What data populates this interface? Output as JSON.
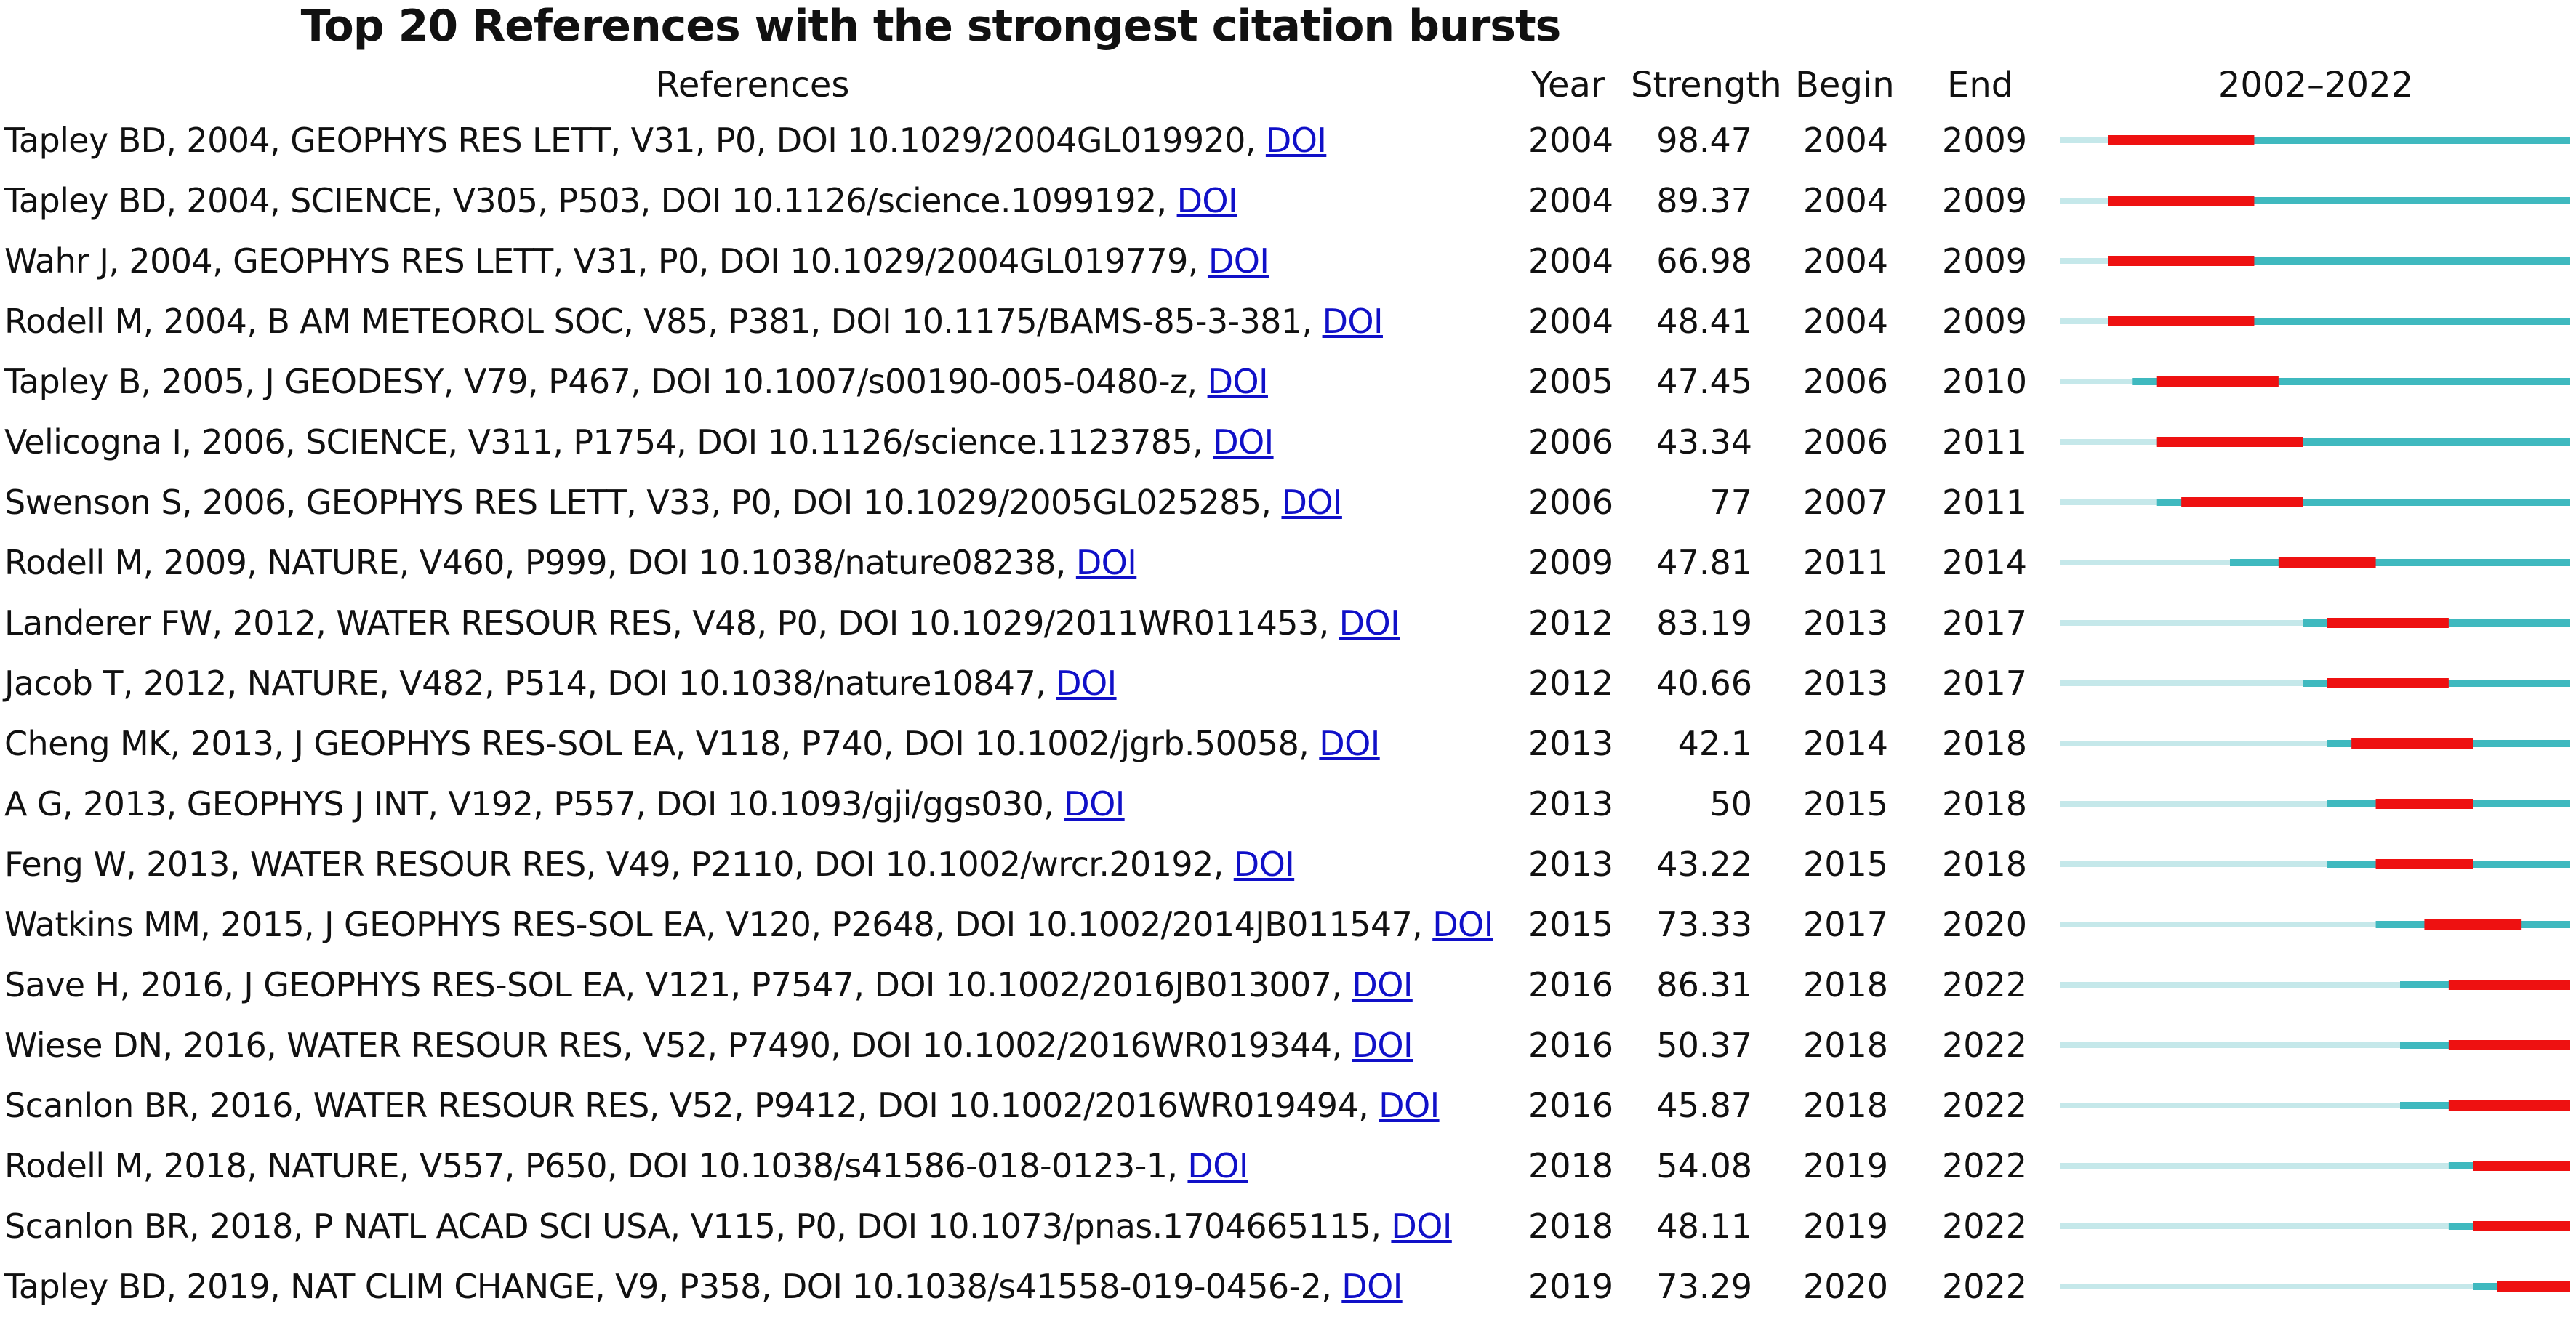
{
  "chart_data": {
    "type": "table",
    "title": "Top 20 References with the strongest citation bursts",
    "columns": [
      "References",
      "Year",
      "Strength",
      "Begin",
      "End",
      "2002–2022"
    ],
    "range": [
      2002,
      2022
    ],
    "doi_label": "DOI",
    "colors": {
      "timeline": "#c5e8ea",
      "active": "#3fb9bf",
      "burst": "#ee1111",
      "link": "#1010c8"
    },
    "rows": [
      {
        "ref": "Tapley BD, 2004, GEOPHYS RES LETT, V31, P0, DOI 10.1029/2004GL019920, ",
        "year": 2004,
        "strength": "98.47",
        "begin": 2004,
        "end": 2009
      },
      {
        "ref": "Tapley BD, 2004, SCIENCE, V305, P503, DOI 10.1126/science.1099192, ",
        "year": 2004,
        "strength": "89.37",
        "begin": 2004,
        "end": 2009
      },
      {
        "ref": "Wahr J, 2004, GEOPHYS RES LETT, V31, P0, DOI 10.1029/2004GL019779, ",
        "year": 2004,
        "strength": "66.98",
        "begin": 2004,
        "end": 2009
      },
      {
        "ref": "Rodell M, 2004, B AM METEOROL SOC, V85, P381, DOI 10.1175/BAMS-85-3-381, ",
        "year": 2004,
        "strength": "48.41",
        "begin": 2004,
        "end": 2009
      },
      {
        "ref": "Tapley B, 2005, J GEODESY, V79, P467, DOI 10.1007/s00190-005-0480-z, ",
        "year": 2005,
        "strength": "47.45",
        "begin": 2006,
        "end": 2010
      },
      {
        "ref": "Velicogna I, 2006, SCIENCE, V311, P1754, DOI 10.1126/science.1123785, ",
        "year": 2006,
        "strength": "43.34",
        "begin": 2006,
        "end": 2011
      },
      {
        "ref": "Swenson S, 2006, GEOPHYS RES LETT, V33, P0, DOI 10.1029/2005GL025285, ",
        "year": 2006,
        "strength": "77",
        "begin": 2007,
        "end": 2011
      },
      {
        "ref": "Rodell M, 2009, NATURE, V460, P999, DOI 10.1038/nature08238, ",
        "year": 2009,
        "strength": "47.81",
        "begin": 2011,
        "end": 2014
      },
      {
        "ref": "Landerer FW, 2012, WATER RESOUR RES, V48, P0, DOI 10.1029/2011WR011453, ",
        "year": 2012,
        "strength": "83.19",
        "begin": 2013,
        "end": 2017
      },
      {
        "ref": "Jacob T, 2012, NATURE, V482, P514, DOI 10.1038/nature10847, ",
        "year": 2012,
        "strength": "40.66",
        "begin": 2013,
        "end": 2017
      },
      {
        "ref": "Cheng MK, 2013, J GEOPHYS RES-SOL EA, V118, P740, DOI 10.1002/jgrb.50058, ",
        "year": 2013,
        "strength": "42.1",
        "begin": 2014,
        "end": 2018
      },
      {
        "ref": "A G, 2013, GEOPHYS J INT, V192, P557, DOI 10.1093/gji/ggs030, ",
        "year": 2013,
        "strength": "50",
        "begin": 2015,
        "end": 2018
      },
      {
        "ref": "Feng W, 2013, WATER RESOUR RES, V49, P2110, DOI 10.1002/wrcr.20192, ",
        "year": 2013,
        "strength": "43.22",
        "begin": 2015,
        "end": 2018
      },
      {
        "ref": "Watkins MM, 2015, J GEOPHYS RES-SOL EA, V120, P2648, DOI 10.1002/2014JB011547, ",
        "year": 2015,
        "strength": "73.33",
        "begin": 2017,
        "end": 2020
      },
      {
        "ref": "Save H, 2016, J GEOPHYS RES-SOL EA, V121, P7547, DOI 10.1002/2016JB013007, ",
        "year": 2016,
        "strength": "86.31",
        "begin": 2018,
        "end": 2022
      },
      {
        "ref": "Wiese DN, 2016, WATER RESOUR RES, V52, P7490, DOI 10.1002/2016WR019344, ",
        "year": 2016,
        "strength": "50.37",
        "begin": 2018,
        "end": 2022
      },
      {
        "ref": "Scanlon BR, 2016, WATER RESOUR RES, V52, P9412, DOI 10.1002/2016WR019494, ",
        "year": 2016,
        "strength": "45.87",
        "begin": 2018,
        "end": 2022
      },
      {
        "ref": "Rodell M, 2018, NATURE, V557, P650, DOI 10.1038/s41586-018-0123-1, ",
        "year": 2018,
        "strength": "54.08",
        "begin": 2019,
        "end": 2022
      },
      {
        "ref": "Scanlon BR, 2018, P NATL ACAD SCI USA, V115, P0, DOI 10.1073/pnas.1704665115, ",
        "year": 2018,
        "strength": "48.11",
        "begin": 2019,
        "end": 2022
      },
      {
        "ref": "Tapley BD, 2019, NAT CLIM CHANGE, V9, P358, DOI 10.1038/s41558-019-0456-2, ",
        "year": 2019,
        "strength": "73.29",
        "begin": 2020,
        "end": 2022
      }
    ]
  }
}
